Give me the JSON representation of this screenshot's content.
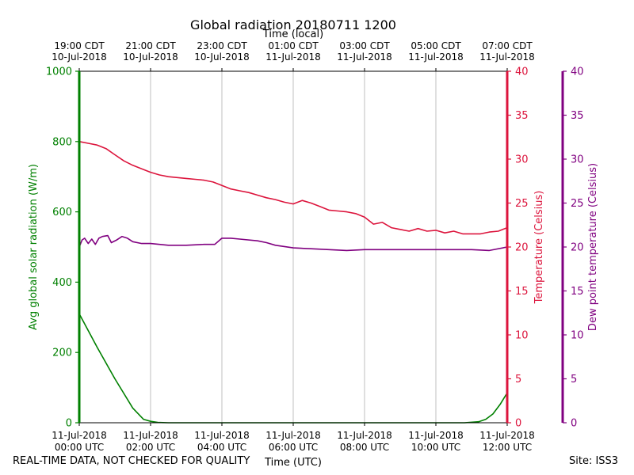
{
  "chart_data": {
    "type": "line",
    "title": "Global radiation 20180711 1200",
    "top_axis_label": "Time (local)",
    "xlabel": "Time (UTC)",
    "x_range_hours": [
      0,
      12
    ],
    "x_ticks": [
      0,
      2,
      4,
      6,
      8,
      10,
      12
    ],
    "x_bottom_tick_labels": [
      [
        "11-Jul-2018",
        "00:00 UTC"
      ],
      [
        "11-Jul-2018",
        "02:00 UTC"
      ],
      [
        "11-Jul-2018",
        "04:00 UTC"
      ],
      [
        "11-Jul-2018",
        "06:00 UTC"
      ],
      [
        "11-Jul-2018",
        "08:00 UTC"
      ],
      [
        "11-Jul-2018",
        "10:00 UTC"
      ],
      [
        "11-Jul-2018",
        "12:00 UTC"
      ]
    ],
    "x_top_tick_labels": [
      [
        "19:00 CDT",
        "10-Jul-2018"
      ],
      [
        "21:00 CDT",
        "10-Jul-2018"
      ],
      [
        "23:00 CDT",
        "10-Jul-2018"
      ],
      [
        "01:00 CDT",
        "11-Jul-2018"
      ],
      [
        "03:00 CDT",
        "11-Jul-2018"
      ],
      [
        "05:00 CDT",
        "11-Jul-2018"
      ],
      [
        "07:00 CDT",
        "11-Jul-2018"
      ]
    ],
    "grid": "vertical",
    "axes": {
      "radiation": {
        "label": "Avg global solar radiation (W/m)",
        "ylim": [
          0,
          1000
        ],
        "ticks": [
          0,
          200,
          400,
          600,
          800,
          1000
        ],
        "color": "#008000"
      },
      "temperature": {
        "label": "Temperature (Celsius)",
        "ylim": [
          0,
          40
        ],
        "ticks": [
          0,
          5,
          10,
          15,
          20,
          25,
          30,
          35,
          40
        ],
        "color": "#dc143c"
      },
      "dewpoint": {
        "label": "Dew point temperature (Celsius)",
        "ylim": [
          0,
          40
        ],
        "ticks": [
          0,
          5,
          10,
          15,
          20,
          25,
          30,
          35,
          40
        ],
        "color": "#800080"
      }
    },
    "series": [
      {
        "name": "Avg global solar radiation",
        "axis": "radiation",
        "color": "#008000",
        "x": [
          0,
          0.5,
          1.0,
          1.5,
          1.8,
          2.0,
          2.2,
          2.5,
          3.0,
          6.0,
          9.0,
          10.8,
          11.2,
          11.4,
          11.6,
          11.8,
          12.0
        ],
        "values": [
          310,
          215,
          125,
          42,
          10,
          4,
          1,
          0,
          0,
          0,
          0,
          0,
          3,
          10,
          25,
          52,
          85
        ]
      },
      {
        "name": "Temperature",
        "axis": "temperature",
        "color": "#dc143c",
        "x": [
          0,
          0.25,
          0.5,
          0.75,
          1.0,
          1.25,
          1.5,
          1.75,
          2.0,
          2.25,
          2.5,
          2.75,
          3.0,
          3.25,
          3.5,
          3.75,
          4.0,
          4.25,
          4.5,
          4.75,
          5.0,
          5.25,
          5.5,
          5.75,
          6.0,
          6.25,
          6.5,
          6.75,
          7.0,
          7.25,
          7.5,
          7.75,
          8.0,
          8.25,
          8.5,
          8.75,
          9.0,
          9.25,
          9.5,
          9.75,
          10.0,
          10.25,
          10.5,
          10.75,
          11.0,
          11.25,
          11.5,
          11.75,
          12.0
        ],
        "values": [
          32.0,
          31.8,
          31.6,
          31.2,
          30.5,
          29.8,
          29.3,
          28.9,
          28.5,
          28.2,
          28.0,
          27.9,
          27.8,
          27.7,
          27.6,
          27.4,
          27.0,
          26.6,
          26.4,
          26.2,
          25.9,
          25.6,
          25.4,
          25.1,
          24.9,
          25.3,
          25.0,
          24.6,
          24.2,
          24.1,
          24.0,
          23.8,
          23.4,
          22.6,
          22.8,
          22.2,
          22.0,
          21.8,
          22.1,
          21.8,
          21.9,
          21.6,
          21.8,
          21.5,
          21.5,
          21.5,
          21.7,
          21.8,
          22.2
        ]
      },
      {
        "name": "Dew point temperature",
        "axis": "dewpoint",
        "color": "#800080",
        "x": [
          0,
          0.08,
          0.15,
          0.25,
          0.35,
          0.45,
          0.55,
          0.65,
          0.8,
          0.9,
          1.05,
          1.2,
          1.35,
          1.5,
          1.75,
          2.0,
          2.5,
          3.0,
          3.5,
          3.8,
          4.0,
          4.25,
          4.5,
          5.0,
          5.25,
          5.5,
          6.0,
          6.5,
          7.0,
          7.5,
          8.0,
          8.5,
          9.0,
          9.5,
          10.0,
          10.5,
          11.0,
          11.5,
          12.0
        ],
        "values": [
          20.0,
          20.8,
          21.0,
          20.4,
          20.9,
          20.3,
          21.0,
          21.2,
          21.3,
          20.5,
          20.8,
          21.2,
          21.0,
          20.6,
          20.4,
          20.4,
          20.2,
          20.2,
          20.3,
          20.3,
          21.0,
          21.0,
          20.9,
          20.7,
          20.5,
          20.2,
          19.9,
          19.8,
          19.7,
          19.6,
          19.7,
          19.7,
          19.7,
          19.7,
          19.7,
          19.7,
          19.7,
          19.6,
          20.0
        ]
      }
    ]
  },
  "footer": {
    "left": "REAL-TIME DATA, NOT CHECKED FOR QUALITY",
    "right": "Site: ISS3"
  }
}
